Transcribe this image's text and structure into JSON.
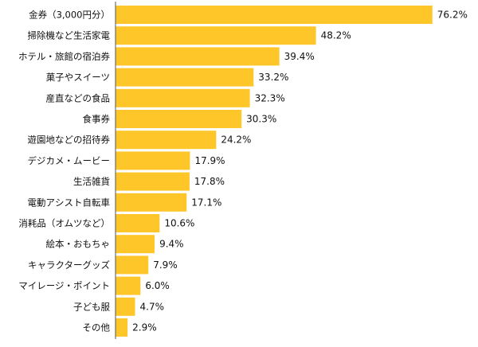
{
  "chart_data": {
    "type": "bar",
    "orientation": "horizontal",
    "title": "",
    "xlabel": "",
    "ylabel": "",
    "xlim": [
      0,
      100
    ],
    "grid": false,
    "legend": "none",
    "bar_color": "#FFC629",
    "categories": [
      "金券（3,000円分）",
      "掃除機など生活家電",
      "ホテル・旅館の宿泊券",
      "菓子やスイーツ",
      "産直などの食品",
      "食事券",
      "遊園地などの招待券",
      "デジカメ・ムービー",
      "生活雑貨",
      "電動アシスト自転車",
      "消耗品（オムツなど）",
      "絵本・おもちゃ",
      "キャラクターグッズ",
      "マイレージ・ポイント",
      "子ども服",
      "その他"
    ],
    "values": [
      76.2,
      48.2,
      39.4,
      33.2,
      32.3,
      30.3,
      24.2,
      17.9,
      17.8,
      17.1,
      10.6,
      9.4,
      7.9,
      6.0,
      4.7,
      2.9
    ],
    "value_labels": [
      "76.2%",
      "48.2%",
      "39.4%",
      "33.2%",
      "32.3%",
      "30.3%",
      "24.2%",
      "17.9%",
      "17.8%",
      "17.1%",
      "10.6%",
      "9.4%",
      "7.9%",
      "6.0%",
      "4.7%",
      "2.9%"
    ]
  }
}
